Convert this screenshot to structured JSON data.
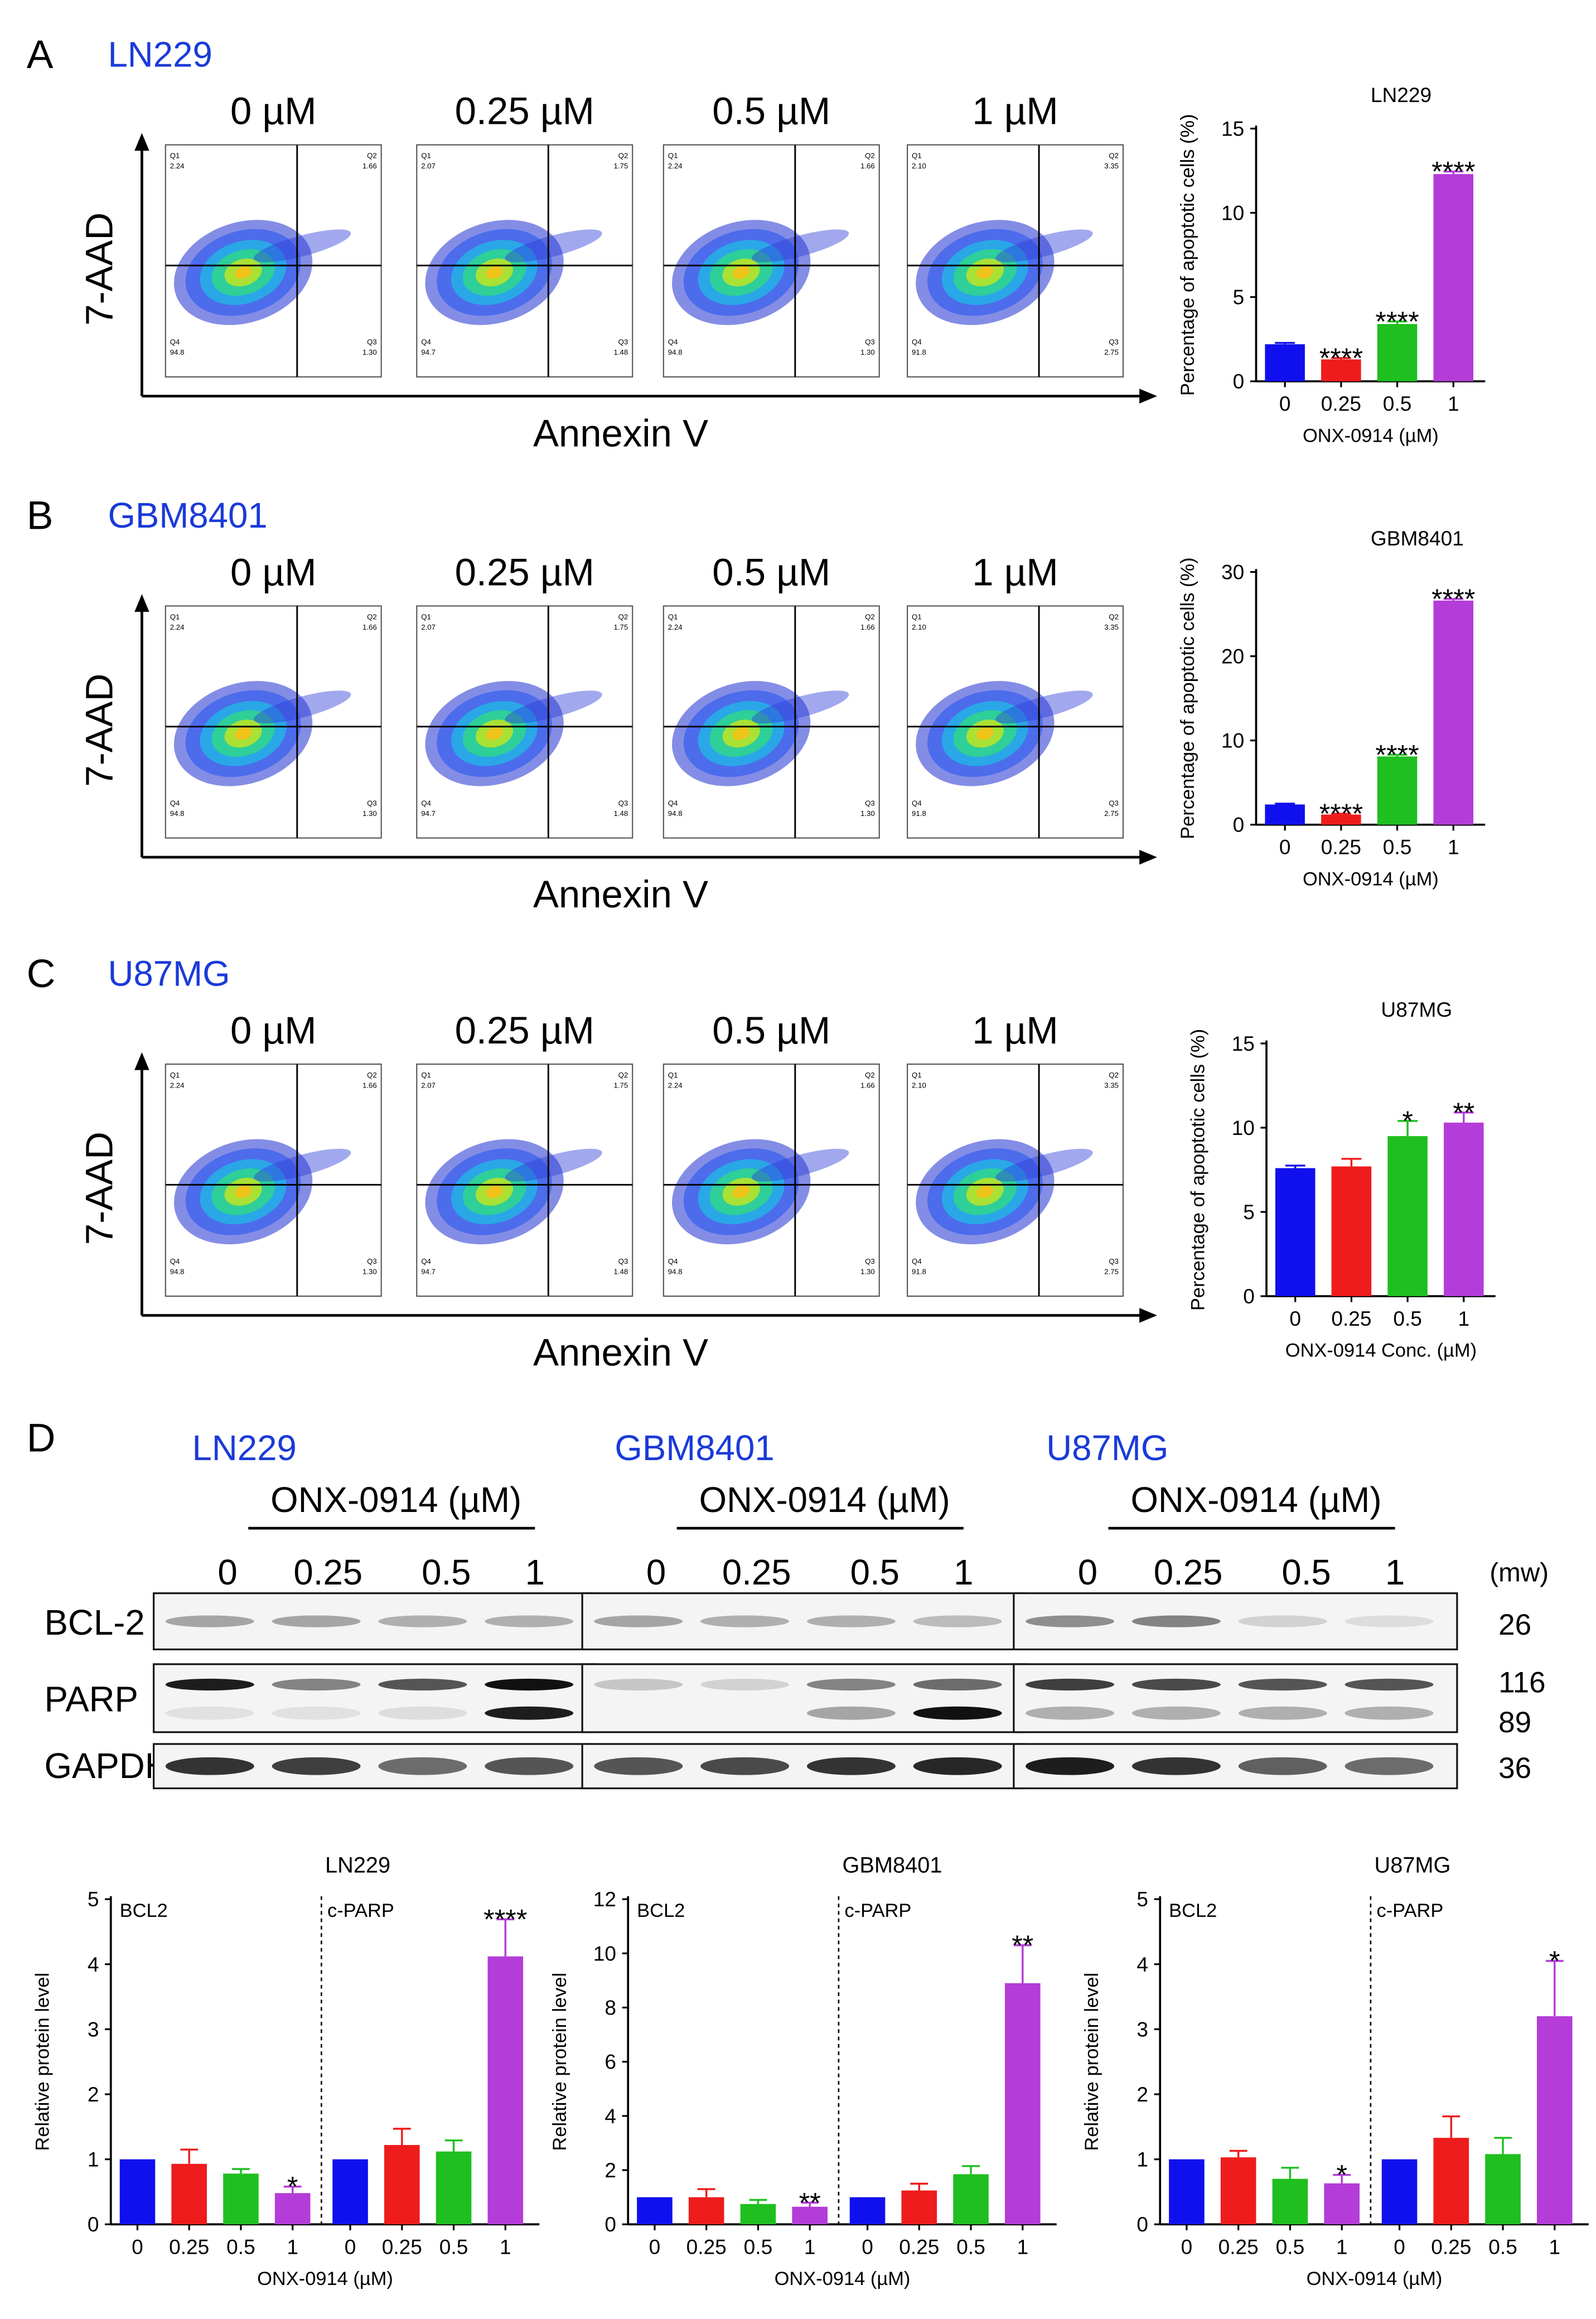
{
  "panels": {
    "A": {
      "letter": "A",
      "cell_line": "LN229",
      "flow": {
        "concentrations": [
          "0 µM",
          "0.25 µM",
          "0.5 µM",
          "1 µM"
        ],
        "y_axis_label": "7-AAD",
        "x_axis_label": "Annexin V",
        "plots": [
          {
            "Q1": "2.24",
            "Q2": "1.66",
            "Q3": "1.30",
            "Q4": "94.8"
          },
          {
            "Q1": "2.07",
            "Q2": "1.75",
            "Q3": "1.48",
            "Q4": "94.7"
          },
          {
            "Q1": "2.24",
            "Q2": "1.66",
            "Q3": "1.30",
            "Q4": "94.8"
          },
          {
            "Q1": "2.10",
            "Q2": "3.35",
            "Q3": "2.75",
            "Q4": "91.8"
          }
        ]
      }
    },
    "B": {
      "letter": "B",
      "cell_line": "GBM8401",
      "flow": {
        "concentrations": [
          "0 µM",
          "0.25 µM",
          "0.5 µM",
          "1 µM"
        ],
        "y_axis_label": "7-AAD",
        "x_axis_label": "Annexin V",
        "plots": [
          {
            "Q1": "2.24",
            "Q2": "1.66",
            "Q3": "1.30",
            "Q4": "94.8"
          },
          {
            "Q1": "2.07",
            "Q2": "1.75",
            "Q3": "1.48",
            "Q4": "94.7"
          },
          {
            "Q1": "2.24",
            "Q2": "1.66",
            "Q3": "1.30",
            "Q4": "94.8"
          },
          {
            "Q1": "2.10",
            "Q2": "3.35",
            "Q3": "2.75",
            "Q4": "91.8"
          }
        ]
      }
    },
    "C": {
      "letter": "C",
      "cell_line": "U87MG",
      "flow": {
        "concentrations": [
          "0 µM",
          "0.25 µM",
          "0.5 µM",
          "1 µM"
        ],
        "y_axis_label": "7-AAD",
        "x_axis_label": "Annexin V",
        "plots": [
          {
            "Q1": "2.24",
            "Q2": "1.66",
            "Q3": "1.30",
            "Q4": "94.8"
          },
          {
            "Q1": "2.07",
            "Q2": "1.75",
            "Q3": "1.48",
            "Q4": "94.7"
          },
          {
            "Q1": "2.24",
            "Q2": "1.66",
            "Q3": "1.30",
            "Q4": "94.8"
          },
          {
            "Q1": "2.10",
            "Q2": "3.35",
            "Q3": "2.75",
            "Q4": "91.8"
          }
        ]
      }
    },
    "D": {
      "letter": "D",
      "blots": [
        {
          "cell_line": "LN229",
          "treatment_label": "ONX-0914 (µM)",
          "lanes": [
            "0",
            "0.25",
            "0.5",
            "1"
          ]
        },
        {
          "cell_line": "GBM8401",
          "treatment_label": "ONX-0914 (µM)",
          "lanes": [
            "0",
            "0.25",
            "0.5",
            "1"
          ]
        },
        {
          "cell_line": "U87MG",
          "treatment_label": "ONX-0914 (µM)",
          "lanes": [
            "0",
            "0.25",
            "0.5",
            "1"
          ]
        }
      ],
      "row_labels": [
        "BCL-2",
        "PARP",
        "GAPDH"
      ],
      "mw_header": "(mw)",
      "mw_values": [
        "26",
        "116",
        "89",
        "36"
      ]
    }
  },
  "colors": {
    "panel_title": "#1a3ad8",
    "bars": [
      "#1010ee",
      "#ee1c1c",
      "#1fbf1f",
      "#b43cd8"
    ]
  },
  "chart_data": [
    {
      "id": "A_bar",
      "type": "bar",
      "title": "LN229",
      "categories": [
        "0",
        "0.25",
        "0.5",
        "1"
      ],
      "values": [
        2.2,
        1.3,
        3.4,
        12.3
      ],
      "errors": [
        0.08,
        0.08,
        0.15,
        0.15
      ],
      "annotations": [
        "",
        "****",
        "****",
        "****"
      ],
      "ylabel": "Percentage of apoptotic cells (%)",
      "xlabel": "ONX-0914 (µM)",
      "ylim": [
        0,
        15
      ],
      "yticks": [
        0,
        5,
        10,
        15
      ],
      "grid": false
    },
    {
      "id": "B_bar",
      "type": "bar",
      "title": "GBM8401",
      "categories": [
        "0",
        "0.25",
        "0.5",
        "1"
      ],
      "values": [
        2.4,
        1.2,
        8.1,
        26.6
      ],
      "errors": [
        0.1,
        0.1,
        0.2,
        0.2
      ],
      "annotations": [
        "",
        "****",
        "****",
        "****"
      ],
      "ylabel": "Percentage of apoptotic cells (%)",
      "xlabel": "ONX-0914 (µM)",
      "ylim": [
        0,
        30
      ],
      "yticks": [
        0,
        10,
        20,
        30
      ],
      "grid": false
    },
    {
      "id": "C_bar",
      "type": "bar",
      "title": "U87MG",
      "categories": [
        "0",
        "0.25",
        "0.5",
        "1"
      ],
      "values": [
        7.6,
        7.7,
        9.5,
        10.3
      ],
      "errors": [
        0.15,
        0.45,
        0.9,
        0.6
      ],
      "annotations": [
        "",
        "",
        "*",
        "**"
      ],
      "ylabel": "Percentage of apoptotic cells (%)",
      "xlabel": "ONX-0914 Conc. (µM)",
      "ylim": [
        0,
        15
      ],
      "yticks": [
        0,
        5,
        10,
        15
      ],
      "grid": false
    },
    {
      "id": "D_LN229",
      "type": "bar",
      "title": "LN229",
      "groups": [
        "BCL2",
        "c-PARP"
      ],
      "categories": [
        "0",
        "0.25",
        "0.5",
        "1",
        "0",
        "0.25",
        "0.5",
        "1"
      ],
      "values": [
        1.0,
        0.93,
        0.78,
        0.48,
        1.0,
        1.22,
        1.12,
        4.12
      ],
      "errors": [
        0.0,
        0.22,
        0.07,
        0.1,
        0.0,
        0.25,
        0.17,
        0.57
      ],
      "annotations": [
        "",
        "",
        "",
        "*",
        "",
        "",
        "",
        "****"
      ],
      "ylabel": "Relative protein level",
      "xlabel": "ONX-0914 (µM)",
      "ylim": [
        0,
        5
      ],
      "yticks": [
        0,
        1,
        2,
        3,
        4,
        5
      ],
      "grid": false
    },
    {
      "id": "D_GBM8401",
      "type": "bar",
      "title": "GBM8401",
      "groups": [
        "BCL2",
        "c-PARP"
      ],
      "categories": [
        "0",
        "0.25",
        "0.5",
        "1",
        "0",
        "0.25",
        "0.5",
        "1"
      ],
      "values": [
        1.0,
        1.0,
        0.75,
        0.65,
        1.0,
        1.25,
        1.85,
        8.9
      ],
      "errors": [
        0.0,
        0.3,
        0.15,
        0.15,
        0.0,
        0.25,
        0.3,
        1.4
      ],
      "annotations": [
        "",
        "",
        "",
        "**",
        "",
        "",
        "",
        "**"
      ],
      "ylabel": "Relative protein level",
      "xlabel": "ONX-0914 (µM)",
      "ylim": [
        0,
        12
      ],
      "yticks": [
        0,
        2,
        4,
        6,
        8,
        10,
        12
      ],
      "grid": false
    },
    {
      "id": "D_U87MG",
      "type": "bar",
      "title": "U87MG",
      "groups": [
        "BCL2",
        "c-PARP"
      ],
      "categories": [
        "0",
        "0.25",
        "0.5",
        "1",
        "0",
        "0.25",
        "0.5",
        "1"
      ],
      "values": [
        1.0,
        1.03,
        0.7,
        0.63,
        1.0,
        1.33,
        1.08,
        3.2
      ],
      "errors": [
        0.0,
        0.1,
        0.17,
        0.13,
        0.0,
        0.33,
        0.25,
        0.85
      ],
      "annotations": [
        "",
        "",
        "",
        "*",
        "",
        "",
        "",
        "*"
      ],
      "ylabel": "Relative protein level",
      "xlabel": "ONX-0914 (µM)",
      "ylim": [
        0,
        5
      ],
      "yticks": [
        0,
        1,
        2,
        3,
        4,
        5
      ],
      "grid": false
    }
  ]
}
